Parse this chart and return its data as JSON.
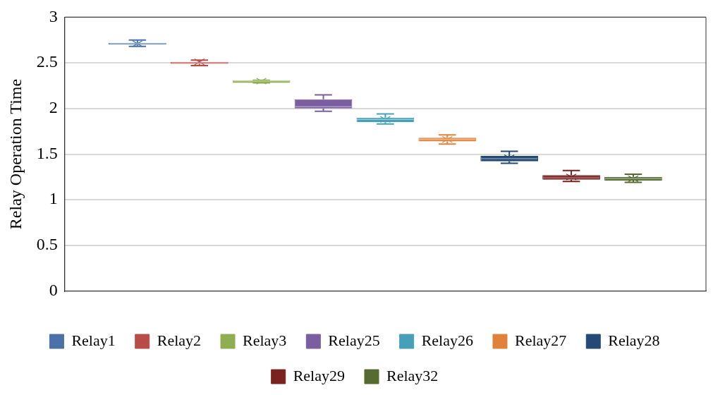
{
  "chart_data": {
    "type": "box",
    "ylabel": "Relay Operation Time",
    "categories": [
      null
    ],
    "ylim": [
      0,
      3
    ],
    "yticks": [
      0,
      0.5,
      1,
      1.5,
      2,
      2.5,
      3
    ],
    "grid": "y",
    "legend": "bottom",
    "marker": "cross",
    "series": [
      {
        "name": "Relay1",
        "color": "#4a72a8",
        "boxes": [
          {
            "low": 2.68,
            "q1": 2.7,
            "median": 2.71,
            "q3": 2.72,
            "high": 2.75,
            "mean": 2.71
          }
        ]
      },
      {
        "name": "Relay2",
        "color": "#b84a47",
        "boxes": [
          {
            "low": 2.47,
            "q1": 2.49,
            "median": 2.5,
            "q3": 2.51,
            "high": 2.53,
            "mean": 2.51
          }
        ]
      },
      {
        "name": "Relay3",
        "color": "#8fae52",
        "boxes": [
          {
            "low": 2.28,
            "q1": 2.28,
            "median": 2.3,
            "q3": 2.31,
            "high": 2.31,
            "mean": 2.3
          }
        ]
      },
      {
        "name": "Relay25",
        "color": "#7b5ea0",
        "boxes": [
          {
            "low": 1.97,
            "q1": 2.0,
            "median": 2.02,
            "q3": 2.1,
            "high": 2.15,
            "mean": 2.05
          }
        ]
      },
      {
        "name": "Relay26",
        "color": "#45a0b8",
        "boxes": [
          {
            "low": 1.83,
            "q1": 1.85,
            "median": 1.88,
            "q3": 1.9,
            "high": 1.94,
            "mean": 1.88
          }
        ]
      },
      {
        "name": "Relay27",
        "color": "#e0823a",
        "boxes": [
          {
            "low": 1.61,
            "q1": 1.64,
            "median": 1.66,
            "q3": 1.68,
            "high": 1.71,
            "mean": 1.66
          }
        ]
      },
      {
        "name": "Relay28",
        "color": "#254a75",
        "boxes": [
          {
            "low": 1.4,
            "q1": 1.42,
            "median": 1.45,
            "q3": 1.48,
            "high": 1.53,
            "mean": 1.46
          }
        ]
      },
      {
        "name": "Relay29",
        "color": "#7a2222",
        "boxes": [
          {
            "low": 1.2,
            "q1": 1.22,
            "median": 1.24,
            "q3": 1.27,
            "high": 1.32,
            "mean": 1.25
          }
        ]
      },
      {
        "name": "Relay32",
        "color": "#556b2f",
        "boxes": [
          {
            "low": 1.19,
            "q1": 1.21,
            "median": 1.23,
            "q3": 1.25,
            "high": 1.28,
            "mean": 1.23
          }
        ]
      }
    ]
  }
}
